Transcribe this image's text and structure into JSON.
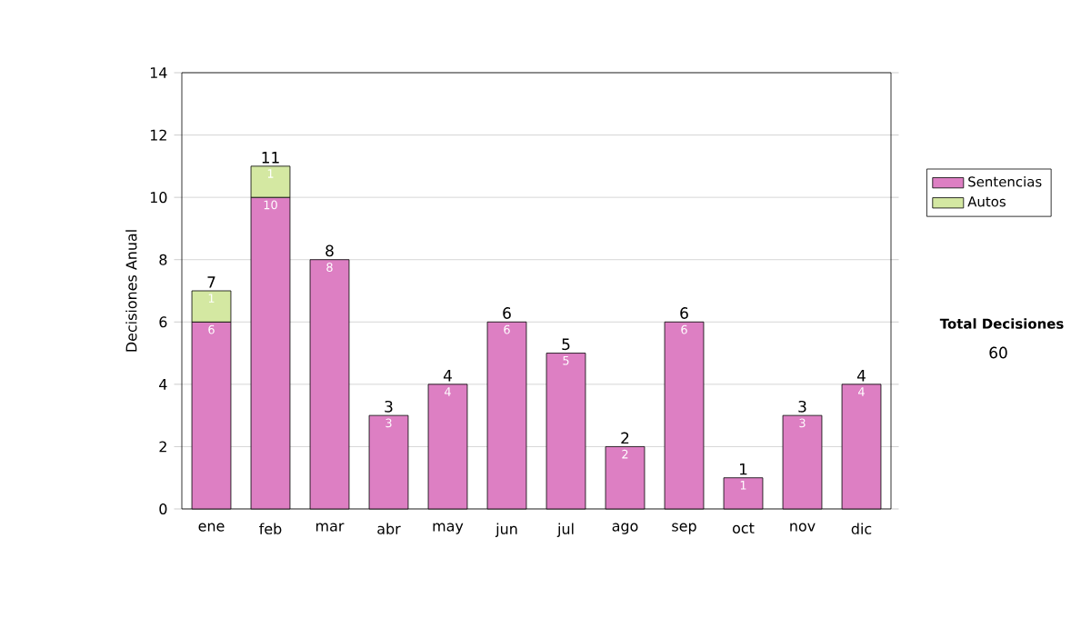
{
  "chart_data": {
    "type": "bar",
    "stacked": true,
    "ylabel": "Decisiones Anual",
    "categories": [
      "ene",
      "feb",
      "mar",
      "abr",
      "may",
      "jun",
      "jul",
      "ago",
      "sep",
      "oct",
      "nov",
      "dic"
    ],
    "series": [
      {
        "name": "Sentencias",
        "color": "#dd7fc3",
        "values": [
          6,
          10,
          8,
          3,
          4,
          6,
          5,
          2,
          6,
          1,
          3,
          4
        ],
        "value_labels": [
          "6",
          "10",
          "8",
          "3",
          "4",
          "6",
          "5",
          "2",
          "6",
          "1",
          "3",
          "4"
        ]
      },
      {
        "name": "Autos",
        "color": "#d4e8a2",
        "values": [
          1,
          1,
          null,
          null,
          null,
          null,
          null,
          null,
          null,
          null,
          null,
          null
        ],
        "value_labels": [
          "1",
          "1",
          null,
          null,
          null,
          null,
          null,
          null,
          null,
          null,
          null,
          null
        ]
      }
    ],
    "totals": [
      "7",
      "11",
      "8",
      "3",
      "4",
      "6",
      "5",
      "2",
      "6",
      "1",
      "3",
      "4"
    ],
    "ylim": [
      0,
      14
    ],
    "yticks": [
      0,
      2,
      4,
      6,
      8,
      10,
      12,
      14
    ],
    "grid": "y",
    "legend": "right",
    "annotations": [
      "Total Decisiones",
      "60"
    ]
  }
}
